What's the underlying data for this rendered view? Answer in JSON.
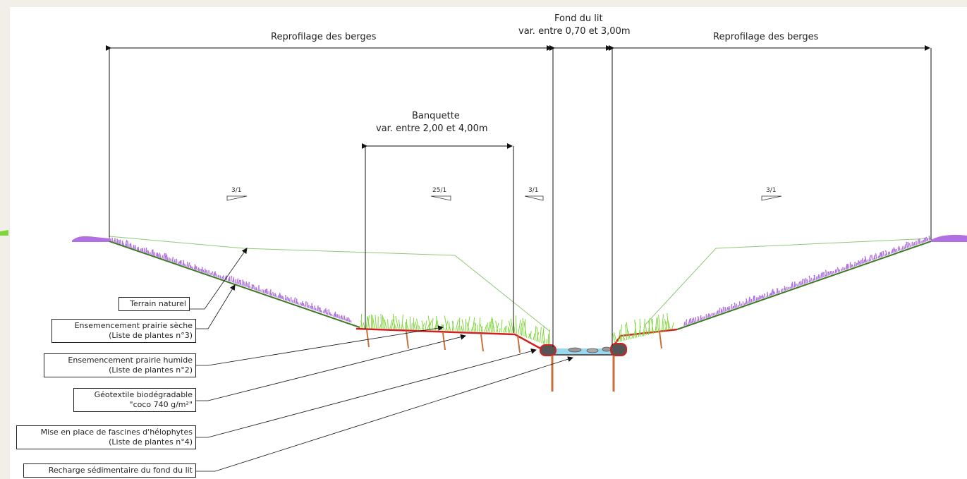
{
  "dimensions": {
    "left_bank_profile": "Reprofilage des berges",
    "right_bank_profile": "Reprofilage des berges",
    "bed_title": "Fond du lit",
    "bed_range": "var. entre 0,70 et 3,00m",
    "bench_title": "Banquette",
    "bench_range": "var. entre 2,00 et 4,00m"
  },
  "slopes": {
    "left_bank": "3/1",
    "bench": "25/1",
    "inner_bank": "3/1",
    "right_bank": "3/1"
  },
  "legend": {
    "terrain": "Terrain naturel",
    "dry_meadow_line1": "Ensemencement prairie sèche",
    "dry_meadow_line2": "(Liste de plantes n°3)",
    "wet_meadow_line1": "Ensemencement prairie humide",
    "wet_meadow_line2": "(Liste de plantes n°2)",
    "geotextile_line1": "Géotextile biodégradable",
    "geotextile_line2": "\"coco 740 g/m²\"",
    "fascines_line1": "Mise en place de fascines d'hélophytes",
    "fascines_line2": "(Liste de plantes n°4)",
    "sediment": "Recharge sédimentaire du fond du lit"
  },
  "colors": {
    "dry_meadow": "#b070e0",
    "wet_meadow": "#7fd63a",
    "geotextile": "#d42020",
    "water": "#9ad8ef",
    "stakes": "#c8703a",
    "terrain_line": "#90c878"
  }
}
